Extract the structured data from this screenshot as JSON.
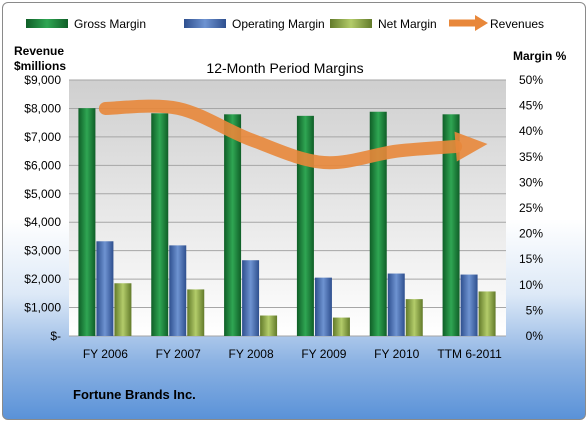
{
  "chart_data": {
    "type": "bar",
    "title": "12-Month Period Margins",
    "categories": [
      "FY 2006",
      "FY 2007",
      "FY 2008",
      "FY 2009",
      "FY 2010",
      "TTM 6-2011"
    ],
    "series": [
      {
        "name": "Gross Margin",
        "axis": "right",
        "values": [
          44.5,
          43.5,
          43.3,
          43.0,
          43.8,
          43.3
        ]
      },
      {
        "name": "Operating Margin",
        "axis": "right",
        "values": [
          18.5,
          17.7,
          14.8,
          11.4,
          12.2,
          12.0
        ]
      },
      {
        "name": "Net Margin",
        "axis": "right",
        "values": [
          10.3,
          9.1,
          4.0,
          3.6,
          7.2,
          8.7
        ]
      },
      {
        "name": "Revenues",
        "axis": "left",
        "type": "line",
        "values": [
          8000,
          8000,
          6900,
          6100,
          6500,
          6700
        ]
      }
    ],
    "y_left": {
      "label_line1": "Revenue",
      "label_line2": "$millions",
      "ylim": [
        0,
        9000
      ],
      "ticks": [
        "$-",
        "$1,000",
        "$2,000",
        "$3,000",
        "$4,000",
        "$5,000",
        "$6,000",
        "$7,000",
        "$8,000",
        "$9,000"
      ]
    },
    "y_right": {
      "label": "Margin %",
      "ylim": [
        0,
        50
      ],
      "ticks": [
        "0%",
        "5%",
        "10%",
        "15%",
        "20%",
        "25%",
        "30%",
        "35%",
        "40%",
        "45%",
        "50%"
      ]
    },
    "legend_position": "top",
    "grid": true,
    "footer": "Fortune Brands Inc.",
    "colors": {
      "Gross Margin": "#1e8a3c",
      "Operating Margin": "#4f74b8",
      "Net Margin": "#8fac4a",
      "Revenues": "#e8873a"
    }
  }
}
